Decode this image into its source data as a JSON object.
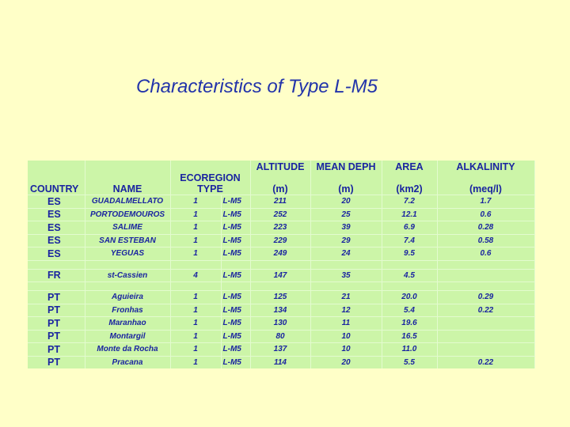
{
  "slide": {
    "title": "Characteristics of Type L-M5"
  },
  "table": {
    "headers": {
      "country": "COUNTRY",
      "name": "NAME",
      "ecoregion": "ECOREGION TYPE",
      "altitude_line1": "ALTITUDE",
      "altitude_line2": "(m)",
      "depth_line1": "MEAN DEPH",
      "depth_line2": "(m)",
      "area_line1": "AREA",
      "area_line2": "(km2)",
      "alkalinity_line1": "ALKALINITY",
      "alkalinity_line2": "(meq/l)"
    },
    "rows": [
      {
        "country": "ES",
        "name": "GUADALMELLATO",
        "eco": "1",
        "type": "L-M5",
        "altitude": "211",
        "depth": "20",
        "area": "7.2",
        "alkalinity": "1.7"
      },
      {
        "country": "ES",
        "name": "PORTODEMOUROS",
        "eco": "1",
        "type": "L-M5",
        "altitude": "252",
        "depth": "25",
        "area": "12.1",
        "alkalinity": "0.6"
      },
      {
        "country": "ES",
        "name": "SALIME",
        "eco": "1",
        "type": "L-M5",
        "altitude": "223",
        "depth": "39",
        "area": "6.9",
        "alkalinity": "0.28"
      },
      {
        "country": "ES",
        "name": "SAN ESTEBAN",
        "eco": "1",
        "type": "L-M5",
        "altitude": "229",
        "depth": "29",
        "area": "7.4",
        "alkalinity": "0.58"
      },
      {
        "country": "ES",
        "name": "YEGUAS",
        "eco": "1",
        "type": "L-M5",
        "altitude": "249",
        "depth": "24",
        "area": "9.5",
        "alkalinity": "0.6"
      },
      {
        "country": "FR",
        "name": "st-Cassien",
        "eco": "4",
        "type": "L-M5",
        "altitude": "147",
        "depth": "35",
        "area": "4.5",
        "alkalinity": ""
      },
      {
        "country": "PT",
        "name": "Aguieira",
        "eco": "1",
        "type": "L-M5",
        "altitude": "125",
        "depth": "21",
        "area": "20.0",
        "alkalinity": "0.29"
      },
      {
        "country": "PT",
        "name": "Fronhas",
        "eco": "1",
        "type": "L-M5",
        "altitude": "134",
        "depth": "12",
        "area": "5.4",
        "alkalinity": "0.22"
      },
      {
        "country": "PT",
        "name": "Maranhao",
        "eco": "1",
        "type": "L-M5",
        "altitude": "130",
        "depth": "11",
        "area": "19.6",
        "alkalinity": ""
      },
      {
        "country": "PT",
        "name": "Montargil",
        "eco": "1",
        "type": "L-M5",
        "altitude": "80",
        "depth": "10",
        "area": "16.5",
        "alkalinity": ""
      },
      {
        "country": "PT",
        "name": "Monte da Rocha",
        "eco": "1",
        "type": "L-M5",
        "altitude": "137",
        "depth": "10",
        "area": "11.0",
        "alkalinity": ""
      },
      {
        "country": "PT",
        "name": "Pracana",
        "eco": "1",
        "type": "L-M5",
        "altitude": "114",
        "depth": "20",
        "area": "5.5",
        "alkalinity": "0.22"
      }
    ]
  }
}
